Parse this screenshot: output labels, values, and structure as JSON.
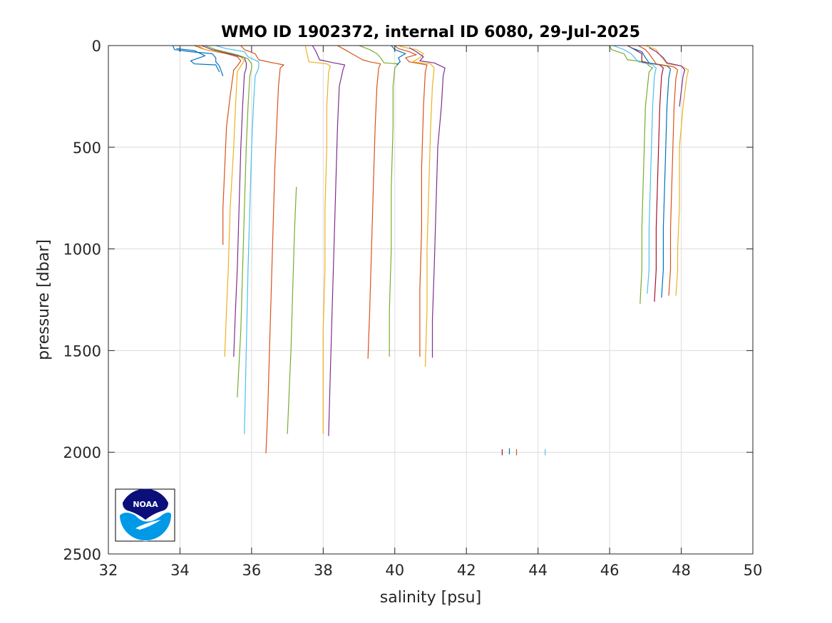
{
  "chart_data": {
    "type": "line",
    "title": "WMO ID 1902372, internal ID 6080, 29-Jul-2025",
    "xlabel": "salinity [psu]",
    "ylabel": "pressure [dbar]",
    "xlim": [
      32,
      50
    ],
    "ylim": [
      0,
      2500
    ],
    "y_reversed": true,
    "grid": true,
    "xticks": [
      32,
      34,
      36,
      38,
      40,
      42,
      44,
      46,
      48,
      50
    ],
    "yticks": [
      0,
      500,
      1000,
      1500,
      2000,
      2500
    ],
    "series": [
      {
        "color": "#0072BD",
        "points": [
          [
            33.8,
            0
          ],
          [
            33.85,
            20
          ],
          [
            34.3,
            30
          ],
          [
            34.9,
            40
          ],
          [
            35.0,
            60
          ],
          [
            35.0,
            80
          ],
          [
            35.1,
            100
          ],
          [
            35.2,
            150
          ]
        ]
      },
      {
        "color": "#0072BD",
        "points": [
          [
            33.9,
            15
          ],
          [
            34.4,
            25
          ],
          [
            34.7,
            50
          ],
          [
            34.3,
            75
          ],
          [
            34.4,
            90
          ],
          [
            35.0,
            95
          ],
          [
            35.1,
            130
          ]
        ]
      },
      {
        "color": "#D95319",
        "points": [
          [
            34.4,
            0
          ],
          [
            34.7,
            20
          ],
          [
            35.3,
            40
          ],
          [
            35.6,
            55
          ],
          [
            35.7,
            75
          ],
          [
            35.6,
            100
          ],
          [
            35.5,
            120
          ],
          [
            35.4,
            250
          ],
          [
            35.3,
            400
          ],
          [
            35.25,
            600
          ],
          [
            35.2,
            800
          ],
          [
            35.2,
            980
          ]
        ]
      },
      {
        "color": "#EDB120",
        "points": [
          [
            34.5,
            0
          ],
          [
            34.7,
            20
          ],
          [
            35.4,
            40
          ],
          [
            35.7,
            55
          ],
          [
            35.8,
            75
          ],
          [
            35.7,
            100
          ],
          [
            35.6,
            130
          ],
          [
            35.55,
            300
          ],
          [
            35.5,
            500
          ],
          [
            35.4,
            800
          ],
          [
            35.35,
            1100
          ],
          [
            35.3,
            1300
          ],
          [
            35.25,
            1530
          ]
        ]
      },
      {
        "color": "#7E2F8E",
        "points": [
          [
            34.6,
            0
          ],
          [
            34.9,
            20
          ],
          [
            35.5,
            45
          ],
          [
            35.8,
            60
          ],
          [
            35.85,
            85
          ],
          [
            35.85,
            110
          ],
          [
            35.8,
            140
          ],
          [
            35.75,
            300
          ],
          [
            35.7,
            500
          ],
          [
            35.65,
            800
          ],
          [
            35.6,
            1100
          ],
          [
            35.55,
            1300
          ],
          [
            35.5,
            1530
          ]
        ]
      },
      {
        "color": "#77AC30",
        "points": [
          [
            34.7,
            0
          ],
          [
            35.0,
            20
          ],
          [
            35.6,
            45
          ],
          [
            35.9,
            65
          ],
          [
            36.0,
            90
          ],
          [
            36.0,
            110
          ],
          [
            35.95,
            150
          ],
          [
            35.9,
            300
          ],
          [
            35.85,
            500
          ],
          [
            35.8,
            800
          ],
          [
            35.75,
            1100
          ],
          [
            35.7,
            1400
          ],
          [
            35.6,
            1730
          ]
        ]
      },
      {
        "color": "#4DBEEE",
        "points": [
          [
            35.0,
            0
          ],
          [
            35.3,
            15
          ],
          [
            35.8,
            30
          ],
          [
            35.9,
            55
          ],
          [
            36.2,
            80
          ],
          [
            36.2,
            110
          ],
          [
            36.1,
            150
          ],
          [
            36.05,
            300
          ],
          [
            36.0,
            500
          ],
          [
            35.95,
            800
          ],
          [
            35.9,
            1100
          ],
          [
            35.85,
            1500
          ],
          [
            35.8,
            1910
          ]
        ]
      },
      {
        "color": "#D95319",
        "points": [
          [
            35.7,
            0
          ],
          [
            35.8,
            20
          ],
          [
            36.1,
            40
          ],
          [
            36.2,
            70
          ],
          [
            36.6,
            85
          ],
          [
            36.9,
            95
          ],
          [
            36.8,
            110
          ],
          [
            36.75,
            200
          ],
          [
            36.7,
            400
          ],
          [
            36.65,
            600
          ],
          [
            36.6,
            900
          ],
          [
            36.55,
            1200
          ],
          [
            36.5,
            1500
          ],
          [
            36.45,
            1800
          ],
          [
            36.4,
            2005
          ]
        ]
      },
      {
        "color": "#77AC30",
        "points": [
          [
            37.25,
            695
          ],
          [
            37.2,
            900
          ],
          [
            37.15,
            1200
          ],
          [
            37.1,
            1500
          ],
          [
            37.05,
            1700
          ],
          [
            37.0,
            1910
          ]
        ]
      },
      {
        "color": "#EDB120",
        "points": [
          [
            37.5,
            0
          ],
          [
            37.55,
            40
          ],
          [
            37.6,
            80
          ],
          [
            38.1,
            90
          ],
          [
            38.2,
            100
          ],
          [
            38.15,
            130
          ],
          [
            38.1,
            300
          ],
          [
            38.1,
            500
          ],
          [
            38.05,
            800
          ],
          [
            38.05,
            1100
          ],
          [
            38.0,
            1400
          ],
          [
            38.0,
            1650
          ],
          [
            38.0,
            1910
          ]
        ]
      },
      {
        "color": "#7E2F8E",
        "points": [
          [
            37.7,
            0
          ],
          [
            37.8,
            30
          ],
          [
            37.9,
            70
          ],
          [
            38.3,
            85
          ],
          [
            38.6,
            95
          ],
          [
            38.55,
            120
          ],
          [
            38.45,
            200
          ],
          [
            38.4,
            400
          ],
          [
            38.35,
            700
          ],
          [
            38.3,
            1000
          ],
          [
            38.25,
            1300
          ],
          [
            38.2,
            1600
          ],
          [
            38.15,
            1920
          ]
        ]
      },
      {
        "color": "#D95319",
        "points": [
          [
            38.4,
            0
          ],
          [
            38.6,
            20
          ],
          [
            38.8,
            40
          ],
          [
            39.1,
            70
          ],
          [
            39.3,
            80
          ],
          [
            39.6,
            90
          ],
          [
            39.55,
            110
          ],
          [
            39.5,
            200
          ],
          [
            39.45,
            400
          ],
          [
            39.4,
            700
          ],
          [
            39.35,
            1000
          ],
          [
            39.3,
            1300
          ],
          [
            39.25,
            1540
          ]
        ]
      },
      {
        "color": "#77AC30",
        "points": [
          [
            39.0,
            0
          ],
          [
            39.3,
            20
          ],
          [
            39.5,
            40
          ],
          [
            39.6,
            60
          ],
          [
            39.7,
            85
          ],
          [
            40.1,
            90
          ],
          [
            40.0,
            110
          ],
          [
            39.95,
            200
          ],
          [
            39.95,
            400
          ],
          [
            39.9,
            700
          ],
          [
            39.9,
            1000
          ],
          [
            39.85,
            1300
          ],
          [
            39.85,
            1530
          ]
        ]
      },
      {
        "color": "#0072BD",
        "points": [
          [
            39.9,
            0
          ],
          [
            40.0,
            20
          ],
          [
            40.3,
            40
          ],
          [
            40.1,
            60
          ],
          [
            40.15,
            80
          ],
          [
            40.05,
            95
          ]
        ]
      },
      {
        "color": "#D95319",
        "points": [
          [
            40.0,
            0
          ],
          [
            40.1,
            15
          ],
          [
            40.4,
            30
          ],
          [
            40.6,
            45
          ],
          [
            40.3,
            60
          ],
          [
            40.4,
            80
          ],
          [
            40.9,
            95
          ],
          [
            40.85,
            130
          ],
          [
            40.8,
            300
          ],
          [
            40.75,
            600
          ],
          [
            40.75,
            900
          ],
          [
            40.7,
            1200
          ],
          [
            40.7,
            1530
          ]
        ]
      },
      {
        "color": "#EDB120",
        "points": [
          [
            40.1,
            0
          ],
          [
            40.3,
            10
          ],
          [
            40.6,
            20
          ],
          [
            40.8,
            40
          ],
          [
            40.7,
            60
          ],
          [
            40.5,
            80
          ],
          [
            41.0,
            90
          ],
          [
            41.1,
            110
          ],
          [
            41.05,
            200
          ],
          [
            41.0,
            400
          ],
          [
            40.95,
            700
          ],
          [
            40.9,
            1000
          ],
          [
            40.9,
            1300
          ],
          [
            40.85,
            1580
          ]
        ]
      },
      {
        "color": "#7E2F8E",
        "points": [
          [
            40.4,
            10
          ],
          [
            40.6,
            30
          ],
          [
            40.8,
            55
          ],
          [
            40.7,
            75
          ],
          [
            41.1,
            85
          ],
          [
            41.4,
            110
          ],
          [
            41.35,
            150
          ],
          [
            41.3,
            300
          ],
          [
            41.2,
            500
          ],
          [
            41.15,
            800
          ],
          [
            41.1,
            1100
          ],
          [
            41.05,
            1350
          ],
          [
            41.05,
            1535
          ]
        ]
      },
      {
        "color": "#A2142F",
        "points": [
          [
            43.0,
            1985
          ],
          [
            43.0,
            2015
          ]
        ]
      },
      {
        "color": "#0072BD",
        "points": [
          [
            43.2,
            1980
          ],
          [
            43.2,
            2010
          ]
        ]
      },
      {
        "color": "#D95319",
        "points": [
          [
            43.4,
            1985
          ],
          [
            43.4,
            2015
          ]
        ]
      },
      {
        "color": "#4DBEEE",
        "points": [
          [
            44.2,
            1985
          ],
          [
            44.2,
            2015
          ]
        ]
      },
      {
        "color": "#77AC30",
        "points": [
          [
            46.0,
            0
          ],
          [
            46.05,
            20
          ],
          [
            46.4,
            40
          ],
          [
            46.5,
            70
          ],
          [
            47.0,
            80
          ],
          [
            47.1,
            100
          ],
          [
            47.2,
            110
          ],
          [
            47.1,
            130
          ],
          [
            47.0,
            300
          ],
          [
            46.95,
            600
          ],
          [
            46.9,
            900
          ],
          [
            46.9,
            1100
          ],
          [
            46.85,
            1270
          ]
        ]
      },
      {
        "color": "#4DBEEE",
        "points": [
          [
            46.1,
            0
          ],
          [
            46.4,
            20
          ],
          [
            46.6,
            40
          ],
          [
            46.8,
            80
          ],
          [
            47.2,
            95
          ],
          [
            47.3,
            110
          ],
          [
            47.25,
            150
          ],
          [
            47.2,
            300
          ],
          [
            47.15,
            600
          ],
          [
            47.1,
            900
          ],
          [
            47.1,
            1100
          ],
          [
            47.05,
            1220
          ]
        ]
      },
      {
        "color": "#A2142F",
        "points": [
          [
            46.5,
            0
          ],
          [
            46.7,
            20
          ],
          [
            46.9,
            40
          ],
          [
            46.9,
            80
          ],
          [
            47.4,
            95
          ],
          [
            47.5,
            110
          ],
          [
            47.45,
            150
          ],
          [
            47.4,
            300
          ],
          [
            47.35,
            600
          ],
          [
            47.3,
            900
          ],
          [
            47.3,
            1100
          ],
          [
            47.25,
            1260
          ]
        ]
      },
      {
        "color": "#0072BD",
        "points": [
          [
            46.6,
            10
          ],
          [
            46.9,
            30
          ],
          [
            47.0,
            60
          ],
          [
            47.1,
            85
          ],
          [
            47.6,
            100
          ],
          [
            47.7,
            115
          ],
          [
            47.65,
            160
          ],
          [
            47.6,
            300
          ],
          [
            47.55,
            600
          ],
          [
            47.5,
            900
          ],
          [
            47.5,
            1100
          ],
          [
            47.45,
            1240
          ]
        ]
      },
      {
        "color": "#D95319",
        "points": [
          [
            46.8,
            0
          ],
          [
            47.0,
            20
          ],
          [
            47.1,
            40
          ],
          [
            47.3,
            90
          ],
          [
            47.8,
            105
          ],
          [
            47.9,
            120
          ],
          [
            47.85,
            160
          ],
          [
            47.8,
            300
          ],
          [
            47.75,
            600
          ],
          [
            47.7,
            900
          ],
          [
            47.7,
            1100
          ],
          [
            47.65,
            1230
          ]
        ]
      },
      {
        "color": "#EDB120",
        "points": [
          [
            47.0,
            0
          ],
          [
            47.3,
            20
          ],
          [
            47.4,
            45
          ],
          [
            47.6,
            90
          ],
          [
            48.0,
            100
          ],
          [
            48.2,
            120
          ],
          [
            48.15,
            160
          ],
          [
            48.05,
            300
          ],
          [
            47.95,
            500
          ],
          [
            47.95,
            800
          ],
          [
            47.9,
            1000
          ],
          [
            47.9,
            1100
          ],
          [
            47.85,
            1230
          ]
        ]
      },
      {
        "color": "#7E2F8E",
        "points": [
          [
            47.1,
            10
          ],
          [
            47.3,
            30
          ],
          [
            47.5,
            60
          ],
          [
            47.6,
            85
          ],
          [
            48.0,
            100
          ],
          [
            48.1,
            120
          ],
          [
            48.05,
            150
          ],
          [
            47.95,
            300
          ]
        ]
      }
    ]
  },
  "logo": {
    "text": "NOAA",
    "colors": {
      "navy": "#0a0f7a",
      "sky": "#0099e6"
    }
  }
}
